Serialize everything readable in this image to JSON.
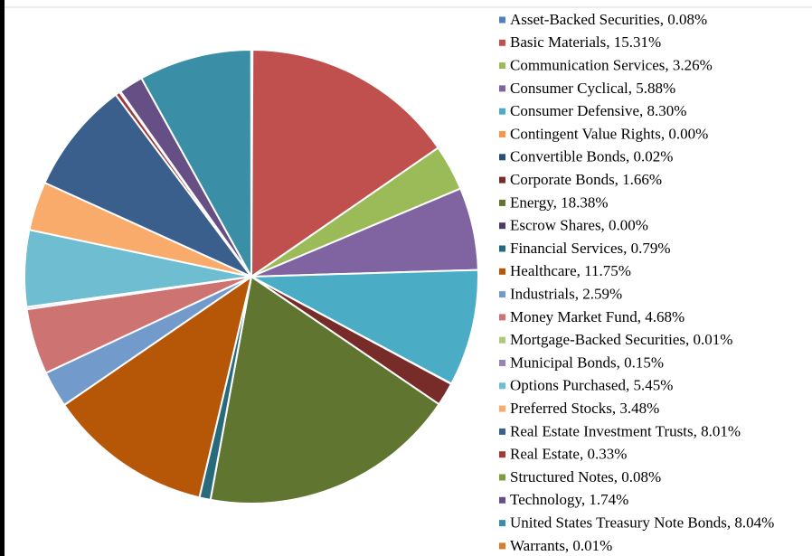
{
  "chart_data": {
    "type": "pie",
    "categories": [
      "Asset-Backed Securities, 0.08%",
      "Basic Materials, 15.31%",
      "Communication Services, 3.26%",
      "Consumer Cyclical, 5.88%",
      "Consumer Defensive, 8.30%",
      "Contingent Value Rights, 0.00%",
      "Convertible Bonds, 0.02%",
      "Corporate Bonds, 1.66%",
      "Energy, 18.38%",
      "Escrow Shares, 0.00%",
      "Financial Services, 0.79%",
      "Healthcare, 11.75%",
      "Industrials, 2.59%",
      "Money Market Fund, 4.68%",
      "Mortgage-Backed Securities, 0.01%",
      "Municipal Bonds, 0.15%",
      "Options Purchased, 5.45%",
      "Preferred Stocks, 3.48%",
      "Real Estate Investment Trusts, 8.01%",
      "Real Estate, 0.33%",
      "Structured Notes, 0.08%",
      "Technology, 1.74%",
      "United States Treasury Note Bonds, 8.04%",
      "Warrants, 0.01%"
    ],
    "values": [
      0.08,
      15.31,
      3.26,
      5.88,
      8.3,
      0.0,
      0.02,
      1.66,
      18.38,
      0.0,
      0.79,
      11.75,
      2.59,
      4.68,
      0.01,
      0.15,
      5.45,
      3.48,
      8.01,
      0.33,
      0.08,
      1.74,
      8.04,
      0.01
    ],
    "colors": [
      "#4f81bd",
      "#c0504d",
      "#9bbb59",
      "#8064a2",
      "#4bacc6",
      "#f79646",
      "#2c4d75",
      "#772c2a",
      "#5f7530",
      "#4d3b62",
      "#276a7c",
      "#b65708",
      "#729aca",
      "#cd7371",
      "#afc97a",
      "#9983b5",
      "#6fbdd1",
      "#f9ab6b",
      "#3a5f8c",
      "#9e3b38",
      "#7f9c41",
      "#664f84",
      "#3a8fa6",
      "#d67d2c"
    ]
  }
}
